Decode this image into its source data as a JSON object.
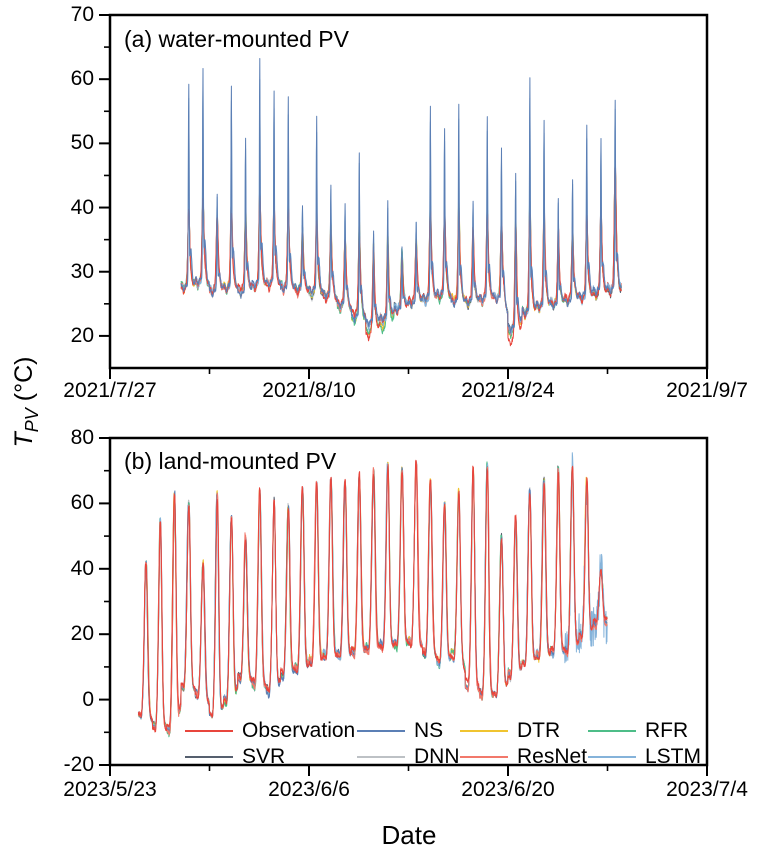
{
  "chart_data": {
    "type": "line",
    "xlabel": "Date",
    "ylabel": {
      "main": "T",
      "sub": "PV",
      "unit": "(°C)"
    },
    "frame_color": "#000000",
    "background_color": "#ffffff",
    "series": [
      {
        "name": "Observation",
        "color": "#e8453c"
      },
      {
        "name": "NS",
        "color": "#5b7fb5"
      },
      {
        "name": "DTR",
        "color": "#f0c430"
      },
      {
        "name": "RFR",
        "color": "#4dbd88"
      },
      {
        "name": "SVR",
        "color": "#555f6e"
      },
      {
        "name": "DNN",
        "color": "#bdc1c5"
      },
      {
        "name": "ResNet",
        "color": "#f2786b"
      },
      {
        "name": "LSTM",
        "color": "#85b3da"
      }
    ],
    "legend": {
      "rows": [
        [
          "Observation",
          "NS",
          "DTR",
          "RFR"
        ],
        [
          "SVR",
          "DNN",
          "ResNet",
          "LSTM"
        ]
      ],
      "position": "inside bottom of panel b"
    },
    "panels": [
      {
        "label": "(a) water-mounted PV",
        "x_tick_labels": [
          "2021/7/27",
          "2021/8/10",
          "2021/8/24",
          "2021/9/7"
        ],
        "x_range_days": 42,
        "x_major_every_days": 14,
        "x_minor_every_days": 7,
        "ylim": [
          15,
          70
        ],
        "y_major_ticks": [
          20,
          30,
          40,
          50,
          60,
          70
        ],
        "y_minor_step": 5,
        "data_start_day": 5,
        "daily_estimates": {
          "note": "per-day values read off the plot, 2021/8/1 through 2021/8/31",
          "ns_peak_est": [
            59.5,
            61.5,
            42,
            59,
            50.5,
            63,
            58,
            57,
            40.5,
            54,
            43.5,
            40.5,
            48.5,
            36.5,
            41,
            34,
            38,
            55.5,
            52.5,
            56,
            41,
            54,
            49,
            45.5,
            60,
            53.5,
            41.5,
            44.5,
            53,
            50.5,
            57
          ],
          "cluster_peak_est": [
            40,
            41,
            38,
            40.5,
            39,
            41.5,
            40,
            39.5,
            36,
            38.5,
            37,
            35.5,
            36.5,
            33.5,
            35,
            32.5,
            34.5,
            39.5,
            38.5,
            40,
            36,
            38.5,
            37.5,
            37,
            40.5,
            39,
            36,
            36.5,
            38.5,
            39.5,
            45.5
          ],
          "night_min_est": [
            28,
            28.5,
            27.5,
            28,
            27.5,
            28,
            28.5,
            28,
            27.5,
            27,
            26.5,
            25,
            23.5,
            22.5,
            23,
            24.5,
            25.5,
            26,
            26.5,
            26,
            25.5,
            26,
            26.5,
            21.5,
            24,
            25,
            25.5,
            26,
            26.5,
            27,
            27.5
          ]
        }
      },
      {
        "label": "(b) land-mounted PV",
        "x_tick_labels": [
          "2023/5/23",
          "2023/6/6",
          "2023/6/20",
          "2023/7/4"
        ],
        "x_range_days": 42,
        "x_major_every_days": 14,
        "x_minor_every_days": 7,
        "ylim": [
          -20,
          80
        ],
        "y_major_ticks": [
          -20,
          0,
          20,
          40,
          60,
          80
        ],
        "y_minor_step": 10,
        "data_start_day": 2,
        "daily_estimates": {
          "note": "per-day values read off the plot, 2023/5/25 through 2023/6/26; all eight series overlap",
          "peak_est": [
            43,
            54,
            62,
            60,
            41,
            62,
            55,
            49,
            63,
            60,
            58,
            64,
            66,
            68,
            66,
            68,
            70,
            71,
            70,
            72,
            66,
            59,
            63,
            70,
            71,
            49,
            55,
            63,
            67,
            70,
            71,
            66,
            40
          ],
          "low_est": [
            -5,
            -8,
            -9,
            4,
            2,
            -4,
            0,
            7,
            5,
            3,
            8,
            10,
            12,
            14,
            14,
            15,
            16,
            17,
            17,
            18,
            15,
            12,
            14,
            5,
            2,
            1,
            8,
            12,
            14,
            15,
            15,
            20,
            24
          ]
        }
      }
    ]
  }
}
